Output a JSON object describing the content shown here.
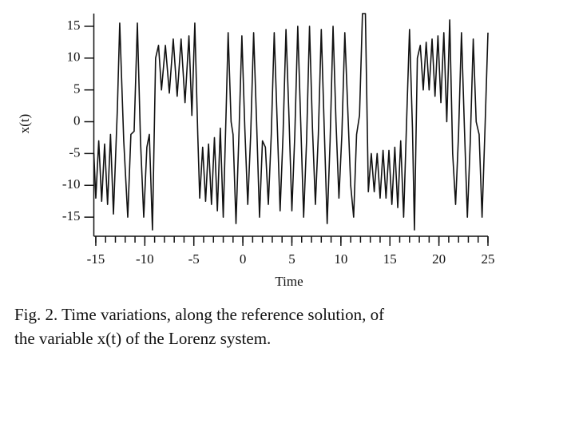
{
  "chart_data": {
    "type": "line",
    "xlabel": "Time",
    "ylabel": "x(t)",
    "color": "#111111",
    "xlim": [
      -15.2,
      25
    ],
    "ylim": [
      -18,
      17
    ],
    "xticks": [
      -15,
      -10,
      -5,
      0,
      5,
      10,
      15,
      20,
      25
    ],
    "xminorticks": [
      -15,
      -14,
      -13,
      -12,
      -11,
      -10,
      -9,
      -8,
      -7,
      -6,
      -5,
      -4,
      -3,
      -2,
      -1,
      0,
      1,
      2,
      3,
      4,
      5,
      6,
      7,
      8,
      9,
      10,
      11,
      12,
      13,
      14,
      15,
      16,
      17,
      18,
      19,
      20,
      21,
      22,
      23,
      24,
      25
    ],
    "yticks": [
      15,
      10,
      5,
      0,
      -5,
      -10,
      -15
    ],
    "x": [
      -15.2,
      -15.0,
      -14.7,
      -14.4,
      -14.1,
      -13.8,
      -13.5,
      -13.2,
      -12.8,
      -12.56,
      -12.15,
      -11.74,
      -11.42,
      -11.09,
      -10.76,
      -10.44,
      -10.11,
      -9.79,
      -9.54,
      -9.22,
      -8.9,
      -8.6,
      -8.3,
      -7.9,
      -7.5,
      -7.1,
      -6.7,
      -6.3,
      -5.9,
      -5.5,
      -5.2,
      -4.9,
      -4.6,
      -4.4,
      -4.1,
      -3.8,
      -3.5,
      -3.2,
      -2.9,
      -2.6,
      -2.3,
      -2.0,
      -1.7,
      -1.5,
      -1.2,
      -1.0,
      -0.7,
      -0.4,
      -0.1,
      0.2,
      0.5,
      0.8,
      1.1,
      1.4,
      1.7,
      2.0,
      2.3,
      2.6,
      2.9,
      3.2,
      3.5,
      3.8,
      4.1,
      4.4,
      4.7,
      5.0,
      5.3,
      5.6,
      5.9,
      6.2,
      6.5,
      6.8,
      7.1,
      7.4,
      7.7,
      8.0,
      8.3,
      8.6,
      8.9,
      9.2,
      9.5,
      9.8,
      10.1,
      10.4,
      10.7,
      11.0,
      11.3,
      11.6,
      11.9,
      12.2,
      12.5,
      12.8,
      13.1,
      13.4,
      13.7,
      14.0,
      14.3,
      14.6,
      14.9,
      15.2,
      15.5,
      15.8,
      16.1,
      16.4,
      16.7,
      17.0,
      17.3,
      17.5,
      17.8,
      18.1,
      18.4,
      18.7,
      19.0,
      19.3,
      19.6,
      19.9,
      20.2,
      20.5,
      20.8,
      21.1,
      21.4,
      21.7,
      22.0,
      22.3,
      22.6,
      22.9,
      23.2,
      23.5,
      23.8,
      24.1,
      24.4,
      24.7,
      25.0
    ],
    "values": [
      -5,
      -12,
      -3,
      -12.5,
      -3.5,
      -13,
      -2,
      -14.5,
      2,
      15.5,
      -3,
      -15,
      -2,
      -1.5,
      15.5,
      -3,
      -15,
      -4,
      -2,
      -17,
      10,
      12,
      5,
      12,
      4.5,
      13,
      4,
      13,
      3,
      13.5,
      1,
      15.5,
      -2,
      -12,
      -4,
      -12.5,
      -3.5,
      -13,
      -2.5,
      -14,
      -1,
      -15,
      2,
      14,
      0,
      -2,
      -16,
      -2,
      13.5,
      -1,
      -13,
      -2,
      14,
      0,
      -15,
      -3,
      -4,
      -13,
      -2,
      14,
      0,
      -14,
      -2,
      14.5,
      1,
      -14,
      -2,
      15,
      0,
      -15,
      -3,
      15,
      -1,
      -13,
      -2,
      14.5,
      -1,
      -16,
      -3,
      15,
      0,
      -12,
      -2,
      14,
      2,
      -10,
      -15,
      -2,
      1,
      17,
      17,
      -11,
      -5,
      -11,
      -5,
      -12,
      -4.5,
      -12,
      -4.5,
      -13,
      -4,
      -13.5,
      -3,
      -15,
      0,
      14.5,
      -1,
      -17,
      10,
      12,
      5,
      12.5,
      5,
      13,
      4,
      13.5,
      3,
      14,
      0,
      16,
      -5,
      -13,
      -2,
      14,
      -1,
      -15,
      -3,
      13,
      0,
      -2,
      -15,
      -1,
      14
    ]
  },
  "caption": {
    "lines": [
      "Fig. 2. Time variations, along the reference solution, of",
      "the variable x(t) of the Lorenz system."
    ]
  }
}
